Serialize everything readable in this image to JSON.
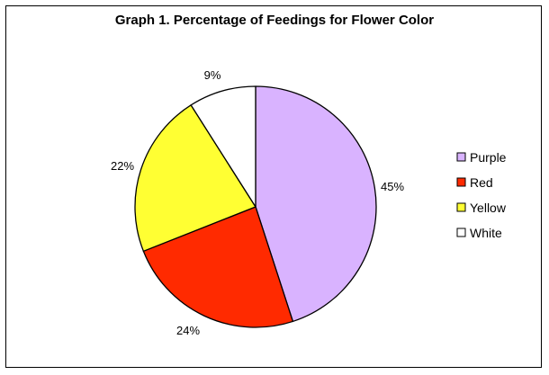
{
  "chart_data": {
    "type": "pie",
    "title": "Graph 1. Percentage of Feedings for Flower Color",
    "slices": [
      {
        "label": "Purple",
        "value": 45,
        "display": "45%",
        "color": "#d9b3ff"
      },
      {
        "label": "Red",
        "value": 24,
        "display": "24%",
        "color": "#ff2a00"
      },
      {
        "label": "Yellow",
        "value": 22,
        "display": "22%",
        "color": "#ffff33"
      },
      {
        "label": "White",
        "value": 9,
        "display": "9%",
        "color": "#ffffff"
      }
    ],
    "start": "12 o'clock",
    "direction": "clockwise",
    "legend": {
      "position": "right",
      "entries": [
        "Purple",
        "Red",
        "Yellow",
        "White"
      ]
    },
    "outline_color": "#000000"
  }
}
